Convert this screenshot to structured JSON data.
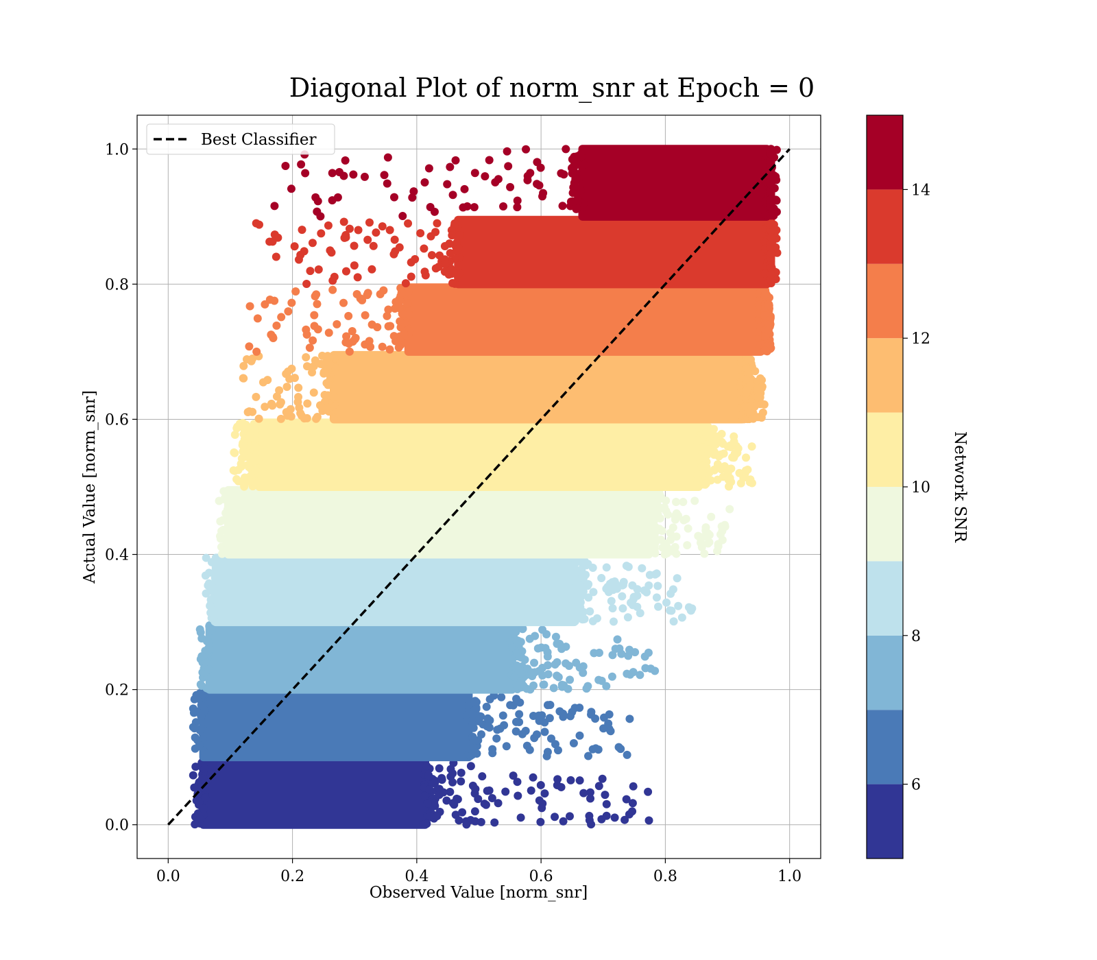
{
  "chart_data": {
    "type": "scatter",
    "title": "Diagonal Plot of norm_snr at Epoch = 0",
    "xlabel": "Observed Value [norm_snr]",
    "ylabel": "Actual Value [norm_snr]",
    "xlim": [
      -0.05,
      1.05
    ],
    "ylim": [
      -0.05,
      1.05
    ],
    "xticks": [
      "0.0",
      "0.2",
      "0.4",
      "0.6",
      "0.8",
      "1.0"
    ],
    "yticks": [
      "0.0",
      "0.2",
      "0.4",
      "0.6",
      "0.8",
      "1.0"
    ],
    "grid": true,
    "legend": {
      "placement": "upper-left",
      "entries": [
        "Best Classifier"
      ]
    },
    "reference_line": {
      "name": "Best Classifier",
      "style": "dashed",
      "color": "#000000",
      "x": [
        0.0,
        1.0
      ],
      "y": [
        0.0,
        1.0
      ]
    },
    "colorbar": {
      "label": "Network SNR",
      "range": [
        5,
        15
      ],
      "ticks": [
        "6",
        "8",
        "10",
        "12",
        "14"
      ],
      "bins": [
        {
          "range": [
            5,
            6
          ],
          "color": "#313695"
        },
        {
          "range": [
            6,
            7
          ],
          "color": "#4a7ab7"
        },
        {
          "range": [
            7,
            8
          ],
          "color": "#81b6d6"
        },
        {
          "range": [
            8,
            9
          ],
          "color": "#bee1ec"
        },
        {
          "range": [
            9,
            10
          ],
          "color": "#eff8df"
        },
        {
          "range": [
            10,
            11
          ],
          "color": "#feeea5"
        },
        {
          "range": [
            11,
            12
          ],
          "color": "#fdbd71"
        },
        {
          "range": [
            12,
            13
          ],
          "color": "#f47e4b"
        },
        {
          "range": [
            13,
            14
          ],
          "color": "#da3a2d"
        },
        {
          "range": [
            14,
            15
          ],
          "color": "#a50026"
        }
      ]
    },
    "point_bands": [
      {
        "y_range": [
          0.0,
          0.095
        ],
        "dense_x_range": [
          0.05,
          0.42
        ],
        "scatter_x_max": 0.78,
        "color": "#313695"
      },
      {
        "y_range": [
          0.1,
          0.195
        ],
        "dense_x_range": [
          0.05,
          0.49
        ],
        "scatter_x_max": 0.75,
        "color": "#4a7ab7"
      },
      {
        "y_range": [
          0.2,
          0.295
        ],
        "dense_x_range": [
          0.06,
          0.56
        ],
        "scatter_x_max": 0.79,
        "color": "#81b6d6"
      },
      {
        "y_range": [
          0.3,
          0.395
        ],
        "dense_x_range": [
          0.07,
          0.66
        ],
        "scatter_x_max": 0.85,
        "color": "#bee1ec"
      },
      {
        "y_range": [
          0.4,
          0.495
        ],
        "dense_x_range": [
          0.09,
          0.78
        ],
        "scatter_x_max": 0.91,
        "color": "#eff8df"
      },
      {
        "y_range": [
          0.5,
          0.595
        ],
        "dense_x_range": [
          0.14,
          0.86
        ],
        "scatter_x_max": 0.94,
        "color": "#feeea5"
      },
      {
        "y_range": [
          0.6,
          0.695
        ],
        "dense_x_range": [
          0.26,
          0.93
        ],
        "scatter_x_max": 0.96,
        "color": "#fdbd71"
      },
      {
        "y_range": [
          0.7,
          0.795
        ],
        "dense_x_range": [
          0.38,
          0.96
        ],
        "scatter_x_max": 0.97,
        "color": "#f47e4b"
      },
      {
        "y_range": [
          0.8,
          0.895
        ],
        "dense_x_range": [
          0.46,
          0.97
        ],
        "scatter_x_max": 0.97,
        "color": "#da3a2d"
      },
      {
        "y_range": [
          0.9,
          1.0
        ],
        "dense_x_range": [
          0.66,
          0.97
        ],
        "scatter_x_max": 0.97,
        "color": "#a50026"
      }
    ]
  }
}
